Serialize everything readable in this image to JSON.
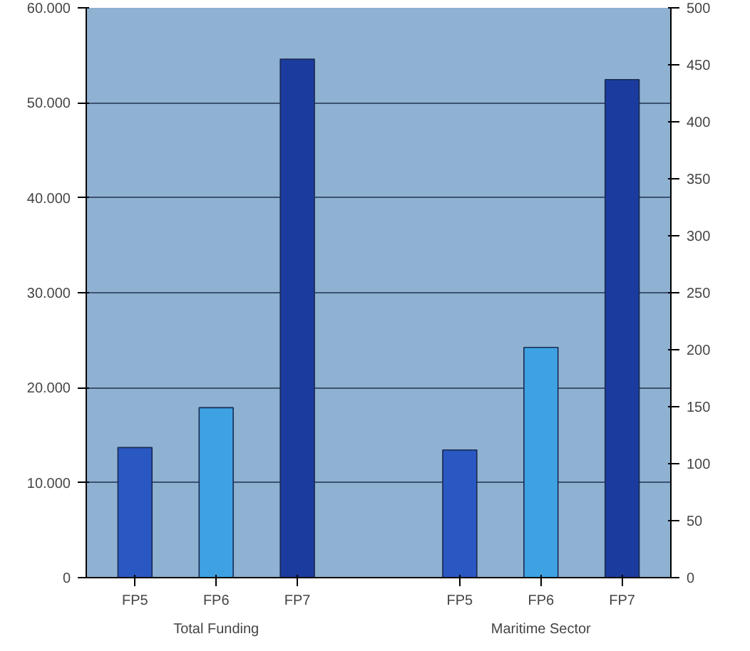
{
  "chart_data": {
    "type": "bar",
    "categories": [
      "FP5",
      "FP6",
      "FP7",
      null,
      "FP5",
      "FP6",
      "FP7"
    ],
    "series": [
      {
        "colors": [
          "#2a58c2",
          "#3ea2e2",
          "#1b3c9e",
          null,
          null,
          null,
          null
        ],
        "values": [
          13700,
          17900,
          54600,
          null,
          null,
          null,
          null
        ]
      },
      {
        "axis": "y2",
        "colors": [
          null,
          null,
          null,
          null,
          "#2a58c2",
          "#3ea2e2",
          "#1b3c9e"
        ],
        "values": [
          null,
          null,
          null,
          null,
          112,
          202,
          437
        ]
      }
    ],
    "ylim": [
      0,
      60000
    ],
    "yticks": [
      {
        "value": 0,
        "label": "0"
      },
      {
        "value": 10000,
        "label": "10.000"
      },
      {
        "value": 20000,
        "label": "20.000"
      },
      {
        "value": 30000,
        "label": "30.000"
      },
      {
        "value": 40000,
        "label": "40.000"
      },
      {
        "value": 50000,
        "label": "50.000"
      },
      {
        "value": 60000,
        "label": "60.000"
      }
    ],
    "y2lim": [
      0,
      500
    ],
    "y2ticks": [
      0,
      50,
      100,
      150,
      200,
      250,
      300,
      350,
      400,
      450,
      500
    ],
    "grid": "y",
    "annotations": [
      "Total Funding",
      "Maritime Sector"
    ]
  }
}
